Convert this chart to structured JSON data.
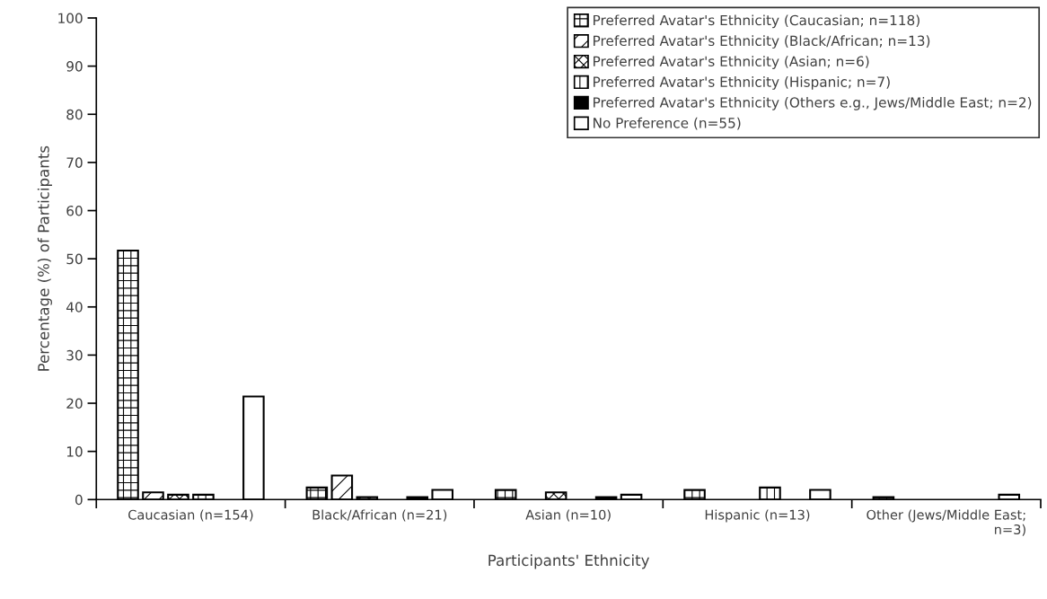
{
  "chart_data": {
    "type": "bar",
    "xlabel": "Participants' Ethnicity",
    "ylabel": "Percentage (%) of Participants",
    "categories": [
      "Caucasian (n=154)",
      "Black/African (n=21)",
      "Asian (n=10)",
      "Hispanic (n=13)",
      "Other (Jews/Middle East; n=3)"
    ],
    "series": [
      {
        "name": "Preferred Avatar's Ethnicity (Caucasian; n=118)",
        "color": "#000000",
        "values": [
          51.7,
          2.5,
          2.0,
          2.0,
          0.5
        ]
      },
      {
        "name": "Preferred Avatar's Ethnicity (Black/African; n=13)",
        "color": "#000000",
        "values": [
          1.5,
          5.0,
          null,
          null,
          null
        ]
      },
      {
        "name": "Preferred Avatar's Ethnicity (Asian; n=6)",
        "color": "#000000",
        "values": [
          1.0,
          0.5,
          1.5,
          null,
          null
        ]
      },
      {
        "name": "Preferred Avatar's Ethnicity (Hispanic; n=7)",
        "color": "#000000",
        "values": [
          1.0,
          null,
          null,
          2.5,
          null
        ]
      },
      {
        "name": "Preferred Avatar's Ethnicity (Others e.g., Jews/Middle East; n=2)",
        "color": "#000000",
        "values": [
          null,
          0.5,
          0.5,
          null,
          null
        ]
      },
      {
        "name": "No Preference (n=55)",
        "color": "#000000",
        "values": [
          21.4,
          2.0,
          1.0,
          2.0,
          1.0
        ]
      }
    ],
    "ylim": [
      0,
      100
    ],
    "yticks": [
      0,
      10,
      20,
      30,
      40,
      50,
      60,
      70,
      80,
      90,
      100
    ],
    "grid": false,
    "legend": "top right"
  }
}
